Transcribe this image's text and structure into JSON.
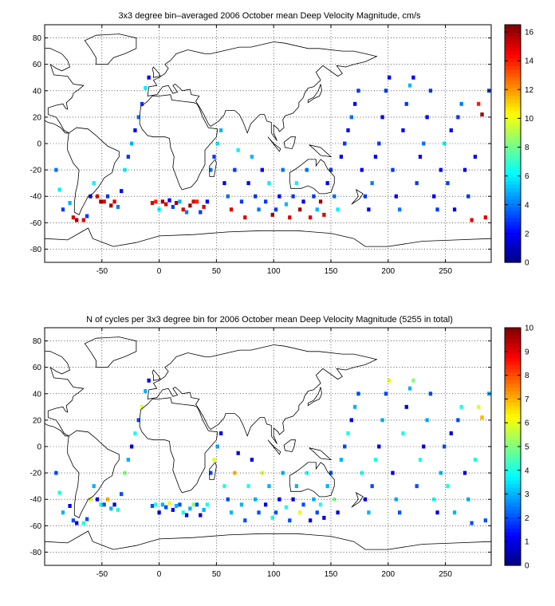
{
  "figure": {
    "panels": [
      {
        "id": "velocity",
        "title": "3x3 degree bin–averaged 2006 October mean Deep Velocity Magnitude, cm/s",
        "colorbar": {
          "min": 0,
          "max": 16.5,
          "ticks": [
            "0",
            "2",
            "4",
            "6",
            "8",
            "10",
            "12",
            "14",
            "16"
          ],
          "tick_values": [
            0,
            2,
            4,
            6,
            8,
            10,
            12,
            14,
            16
          ]
        }
      },
      {
        "id": "cycles",
        "title": "N of cycles per 3x3 degree bin for 2006 October mean Deep Velocity Magnitude (5255 in total)",
        "colorbar": {
          "min": 0,
          "max": 10,
          "ticks": [
            "0",
            "1",
            "2",
            "3",
            "4",
            "5",
            "6",
            "7",
            "8",
            "9",
            "10"
          ],
          "tick_values": [
            0,
            1,
            2,
            3,
            4,
            5,
            6,
            7,
            8,
            9,
            10
          ]
        }
      }
    ]
  },
  "chart_data": [
    {
      "type": "heatmap",
      "title": "3x3 degree bin–averaged 2006 October mean Deep Velocity Magnitude, cm/s",
      "xlim": [
        -100,
        290
      ],
      "ylim": [
        -90,
        90
      ],
      "xticks": [
        -50,
        0,
        50,
        100,
        150,
        200,
        250
      ],
      "yticks": [
        -80,
        -60,
        -40,
        -20,
        0,
        20,
        40,
        60,
        80
      ],
      "grid": true,
      "colormap": "jet",
      "clim": [
        0,
        16.5
      ],
      "bin_size_deg": 3,
      "note_cells": "approximate cell values [lon, lat, value] sampled from the map",
      "cells": [
        [
          -90,
          -20,
          4
        ],
        [
          -87,
          -35,
          6
        ],
        [
          -84,
          -50,
          3
        ],
        [
          -78,
          -45,
          5
        ],
        [
          -75,
          -56,
          15
        ],
        [
          -72,
          -58,
          16
        ],
        [
          -66,
          -58,
          15
        ],
        [
          -63,
          -55,
          3
        ],
        [
          -60,
          -40,
          2
        ],
        [
          -57,
          -30,
          6
        ],
        [
          -54,
          -40,
          15
        ],
        [
          -51,
          -44,
          16
        ],
        [
          -48,
          -44,
          15
        ],
        [
          -45,
          -40,
          3
        ],
        [
          -42,
          -47,
          16
        ],
        [
          -39,
          -44,
          15
        ],
        [
          -36,
          -48,
          4
        ],
        [
          -33,
          -36,
          2
        ],
        [
          -30,
          -20,
          6
        ],
        [
          -27,
          -10,
          3
        ],
        [
          -24,
          0,
          5
        ],
        [
          -21,
          10,
          2
        ],
        [
          -18,
          20,
          4
        ],
        [
          -15,
          30,
          3
        ],
        [
          -12,
          42,
          6
        ],
        [
          -9,
          50,
          2
        ],
        [
          -6,
          -45,
          15
        ],
        [
          -3,
          -44,
          14
        ],
        [
          0,
          -50,
          6
        ],
        [
          3,
          -44,
          16
        ],
        [
          6,
          -46,
          15
        ],
        [
          9,
          -43,
          2
        ],
        [
          12,
          -48,
          3
        ],
        [
          15,
          -45,
          16
        ],
        [
          18,
          -44,
          5
        ],
        [
          21,
          -50,
          15
        ],
        [
          24,
          -52,
          4
        ],
        [
          27,
          -47,
          16
        ],
        [
          30,
          -44,
          15
        ],
        [
          33,
          -44,
          14
        ],
        [
          36,
          -52,
          3
        ],
        [
          39,
          -48,
          15
        ],
        [
          42,
          -44,
          2
        ],
        [
          45,
          -20,
          4
        ],
        [
          48,
          -10,
          3
        ],
        [
          51,
          0,
          6
        ],
        [
          54,
          10,
          5
        ],
        [
          57,
          -30,
          2
        ],
        [
          60,
          -40,
          4
        ],
        [
          63,
          -50,
          15
        ],
        [
          66,
          -20,
          3
        ],
        [
          69,
          -5,
          6
        ],
        [
          72,
          -44,
          3
        ],
        [
          75,
          -56,
          15
        ],
        [
          78,
          -30,
          2
        ],
        [
          81,
          -10,
          5
        ],
        [
          84,
          -40,
          3
        ],
        [
          87,
          -50,
          4
        ],
        [
          90,
          -20,
          2
        ],
        [
          93,
          -44,
          3
        ],
        [
          96,
          -30,
          6
        ],
        [
          99,
          -54,
          16
        ],
        [
          102,
          -50,
          3
        ],
        [
          105,
          -40,
          2
        ],
        [
          108,
          -20,
          4
        ],
        [
          111,
          -46,
          5
        ],
        [
          114,
          -56,
          15
        ],
        [
          117,
          -40,
          3
        ],
        [
          120,
          -30,
          6
        ],
        [
          123,
          -50,
          16
        ],
        [
          126,
          -44,
          2
        ],
        [
          129,
          -20,
          4
        ],
        [
          132,
          -56,
          15
        ],
        [
          135,
          -40,
          3
        ],
        [
          138,
          -50,
          5
        ],
        [
          141,
          -44,
          16
        ],
        [
          144,
          -54,
          15
        ],
        [
          147,
          -30,
          2
        ],
        [
          150,
          -20,
          3
        ],
        [
          153,
          -40,
          4
        ],
        [
          156,
          -50,
          6
        ],
        [
          159,
          -10,
          2
        ],
        [
          162,
          0,
          3
        ],
        [
          165,
          10,
          2
        ],
        [
          168,
          20,
          4
        ],
        [
          171,
          30,
          2
        ],
        [
          174,
          40,
          3
        ],
        [
          177,
          -20,
          2
        ],
        [
          180,
          -40,
          3
        ],
        [
          183,
          -50,
          2
        ],
        [
          186,
          -30,
          4
        ],
        [
          189,
          -10,
          2
        ],
        [
          192,
          0,
          3
        ],
        [
          195,
          20,
          2
        ],
        [
          198,
          40,
          3
        ],
        [
          201,
          50,
          2
        ],
        [
          204,
          -20,
          3
        ],
        [
          207,
          -40,
          2
        ],
        [
          210,
          -50,
          4
        ],
        [
          213,
          10,
          2
        ],
        [
          216,
          30,
          3
        ],
        [
          219,
          44,
          5
        ],
        [
          222,
          50,
          2
        ],
        [
          225,
          -30,
          3
        ],
        [
          228,
          -10,
          2
        ],
        [
          231,
          0,
          4
        ],
        [
          234,
          20,
          2
        ],
        [
          237,
          40,
          3
        ],
        [
          240,
          -40,
          2
        ],
        [
          243,
          -50,
          3
        ],
        [
          246,
          -20,
          2
        ],
        [
          249,
          0,
          6
        ],
        [
          252,
          -30,
          3
        ],
        [
          255,
          10,
          2
        ],
        [
          258,
          -50,
          2
        ],
        [
          261,
          20,
          3
        ],
        [
          264,
          30,
          4
        ],
        [
          267,
          -20,
          2
        ],
        [
          270,
          -40,
          3
        ],
        [
          273,
          -58,
          15
        ],
        [
          276,
          -10,
          2
        ],
        [
          279,
          30,
          14
        ],
        [
          282,
          22,
          16
        ],
        [
          285,
          -56,
          15
        ],
        [
          288,
          40,
          3
        ]
      ]
    },
    {
      "type": "heatmap",
      "title": "N of cycles per 3x3 degree bin for 2006 October mean Deep Velocity Magnitude (5255 in total)",
      "xlim": [
        -100,
        290
      ],
      "ylim": [
        -90,
        90
      ],
      "xticks": [
        -50,
        0,
        50,
        100,
        150,
        200,
        250
      ],
      "yticks": [
        -80,
        -60,
        -40,
        -20,
        0,
        20,
        40,
        60,
        80
      ],
      "grid": true,
      "colormap": "jet",
      "clim": [
        0,
        10
      ],
      "bin_size_deg": 3,
      "total_cycles": 5255,
      "note_cells": "approximate cell values [lon, lat, value] sampled from the map",
      "cells": [
        [
          -90,
          -20,
          2
        ],
        [
          -87,
          -35,
          4
        ],
        [
          -84,
          -50,
          3
        ],
        [
          -78,
          -45,
          1
        ],
        [
          -75,
          -56,
          2
        ],
        [
          -72,
          -58,
          1
        ],
        [
          -66,
          -58,
          4
        ],
        [
          -63,
          -55,
          2
        ],
        [
          -60,
          -40,
          6
        ],
        [
          -57,
          -30,
          3
        ],
        [
          -54,
          -40,
          1
        ],
        [
          -51,
          -44,
          4
        ],
        [
          -48,
          -44,
          2
        ],
        [
          -45,
          -40,
          7
        ],
        [
          -42,
          -47,
          3
        ],
        [
          -39,
          -44,
          1
        ],
        [
          -36,
          -48,
          4
        ],
        [
          -33,
          -36,
          2
        ],
        [
          -30,
          -20,
          5
        ],
        [
          -27,
          -10,
          3
        ],
        [
          -24,
          0,
          1
        ],
        [
          -21,
          10,
          4
        ],
        [
          -18,
          20,
          2
        ],
        [
          -15,
          30,
          6
        ],
        [
          -12,
          42,
          3
        ],
        [
          -9,
          50,
          1
        ],
        [
          -6,
          -45,
          2
        ],
        [
          -3,
          -44,
          4
        ],
        [
          0,
          -50,
          1
        ],
        [
          3,
          -44,
          3
        ],
        [
          6,
          -46,
          2
        ],
        [
          9,
          -43,
          6
        ],
        [
          12,
          -48,
          1
        ],
        [
          15,
          -45,
          3
        ],
        [
          18,
          -44,
          2
        ],
        [
          21,
          -50,
          4
        ],
        [
          24,
          -52,
          1
        ],
        [
          27,
          -47,
          3
        ],
        [
          30,
          -44,
          5
        ],
        [
          33,
          -44,
          2
        ],
        [
          36,
          -52,
          1
        ],
        [
          39,
          -48,
          3
        ],
        [
          42,
          -44,
          4
        ],
        [
          45,
          -20,
          2
        ],
        [
          48,
          -10,
          6
        ],
        [
          51,
          0,
          3
        ],
        [
          54,
          10,
          1
        ],
        [
          57,
          -30,
          4
        ],
        [
          60,
          -40,
          2
        ],
        [
          63,
          -50,
          3
        ],
        [
          66,
          -20,
          7
        ],
        [
          69,
          -5,
          1
        ],
        [
          72,
          -44,
          3
        ],
        [
          75,
          -56,
          2
        ],
        [
          78,
          -30,
          4
        ],
        [
          81,
          -10,
          1
        ],
        [
          84,
          -40,
          3
        ],
        [
          87,
          -50,
          2
        ],
        [
          90,
          -20,
          6
        ],
        [
          93,
          -44,
          1
        ],
        [
          96,
          -30,
          3
        ],
        [
          99,
          -54,
          4
        ],
        [
          102,
          -50,
          2
        ],
        [
          105,
          -40,
          1
        ],
        [
          108,
          -20,
          3
        ],
        [
          111,
          -46,
          4
        ],
        [
          114,
          -56,
          2
        ],
        [
          117,
          -40,
          1
        ],
        [
          120,
          -30,
          3
        ],
        [
          123,
          -50,
          6
        ],
        [
          126,
          -44,
          2
        ],
        [
          129,
          -20,
          4
        ],
        [
          132,
          -56,
          1
        ],
        [
          135,
          -40,
          3
        ],
        [
          138,
          -50,
          2
        ],
        [
          141,
          -44,
          4
        ],
        [
          144,
          -54,
          1
        ],
        [
          147,
          -30,
          3
        ],
        [
          150,
          -20,
          2
        ],
        [
          153,
          -40,
          5
        ],
        [
          156,
          -50,
          1
        ],
        [
          159,
          -10,
          3
        ],
        [
          162,
          0,
          2
        ],
        [
          165,
          10,
          4
        ],
        [
          168,
          20,
          1
        ],
        [
          171,
          30,
          3
        ],
        [
          174,
          40,
          2
        ],
        [
          177,
          -20,
          4
        ],
        [
          180,
          -40,
          1
        ],
        [
          183,
          -50,
          3
        ],
        [
          186,
          -30,
          2
        ],
        [
          189,
          -10,
          4
        ],
        [
          192,
          0,
          1
        ],
        [
          195,
          20,
          3
        ],
        [
          198,
          40,
          2
        ],
        [
          201,
          50,
          6
        ],
        [
          204,
          -20,
          1
        ],
        [
          207,
          -40,
          3
        ],
        [
          210,
          -50,
          2
        ],
        [
          213,
          10,
          4
        ],
        [
          216,
          30,
          1
        ],
        [
          219,
          44,
          3
        ],
        [
          222,
          50,
          5
        ],
        [
          225,
          -30,
          2
        ],
        [
          228,
          -10,
          4
        ],
        [
          231,
          0,
          1
        ],
        [
          234,
          20,
          3
        ],
        [
          237,
          40,
          2
        ],
        [
          240,
          -40,
          4
        ],
        [
          243,
          -50,
          1
        ],
        [
          246,
          -20,
          3
        ],
        [
          249,
          0,
          2
        ],
        [
          252,
          -30,
          4
        ],
        [
          255,
          10,
          1
        ],
        [
          258,
          -50,
          3
        ],
        [
          261,
          20,
          2
        ],
        [
          264,
          30,
          4
        ],
        [
          267,
          -20,
          1
        ],
        [
          270,
          -40,
          3
        ],
        [
          273,
          -58,
          2
        ],
        [
          276,
          -10,
          4
        ],
        [
          279,
          30,
          6
        ],
        [
          282,
          22,
          7
        ],
        [
          285,
          -56,
          2
        ],
        [
          288,
          40,
          3
        ]
      ]
    }
  ]
}
